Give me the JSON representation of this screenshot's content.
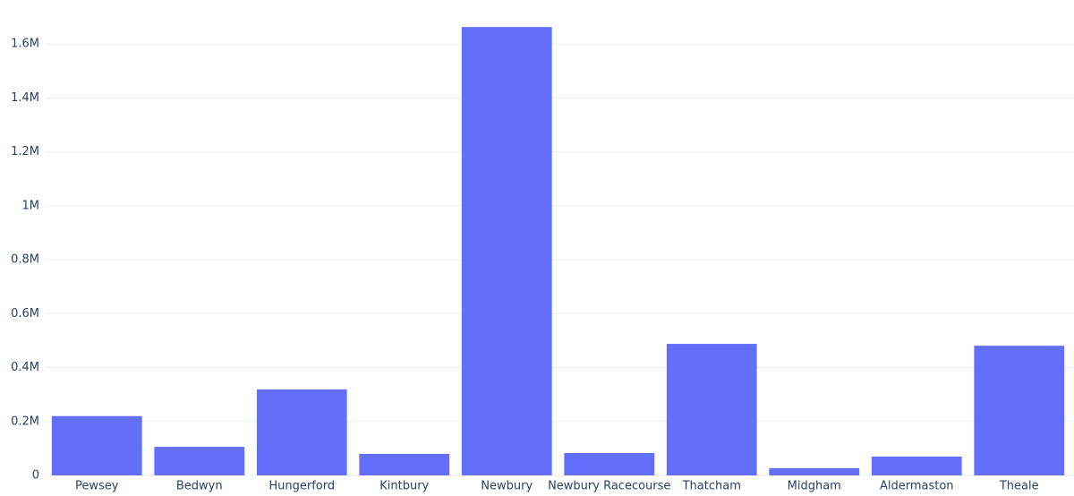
{
  "chart_data": {
    "type": "bar",
    "categories": [
      "Pewsey",
      "Bedwyn",
      "Hungerford",
      "Kintbury",
      "Newbury",
      "Newbury Racecourse",
      "Thatcham",
      "Midgham",
      "Aldermaston",
      "Theale"
    ],
    "values": [
      220000,
      106000,
      319000,
      80000,
      1663000,
      83000,
      488000,
      27000,
      70000,
      481000
    ],
    "color": "#636efa",
    "ylim": [
      0,
      1750000
    ],
    "yticks": [
      0,
      {
        "value": 200000,
        "label": "0.2M"
      },
      {
        "value": 400000,
        "label": "0.4M"
      },
      {
        "value": 600000,
        "label": "0.6M"
      },
      {
        "value": 800000,
        "label": "0.8M"
      },
      {
        "value": 1000000,
        "label": "1M"
      },
      {
        "value": 1200000,
        "label": "1.2M"
      },
      {
        "value": 1400000,
        "label": "1.4M"
      },
      {
        "value": 1600000,
        "label": "1.6M"
      }
    ],
    "grid": true
  }
}
